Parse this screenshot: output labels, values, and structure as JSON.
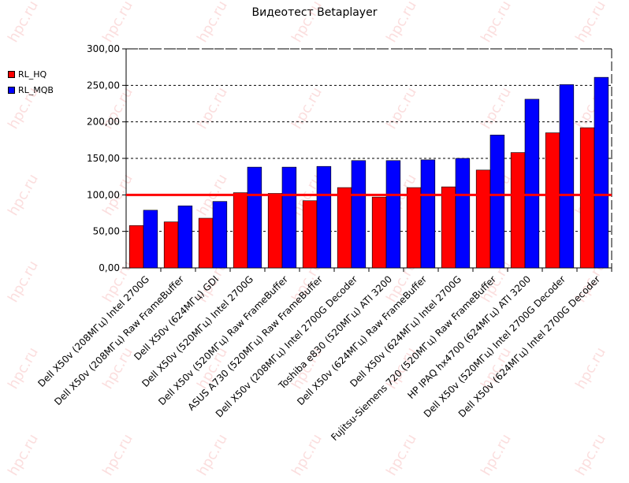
{
  "chart_data": {
    "type": "bar",
    "title": "Видеотест Betaplayer",
    "xlabel": "",
    "ylabel": "",
    "ylim": [
      0,
      300
    ],
    "yticks": [
      "0,00",
      "50,00",
      "100,00",
      "150,00",
      "200,00",
      "250,00",
      "300,00"
    ],
    "grid": true,
    "legend_position": "left",
    "reference_line": 100,
    "reference_color": "#ff0000",
    "watermark": "hpc.ru",
    "categories": [
      "Dell X50v (208МГц) Intel 2700G",
      "Dell X50v (208МГц) Raw FrameBuffer",
      "Dell X50v (624МГц) GDI",
      "Dell X50v (520МГц) Intel 2700G",
      "Dell X50v (520МГц) Raw FrameBuffer",
      "ASUS A730 (520МГц) Raw FrameBuffer",
      "Dell X50v (208МГц) Intel 2700G Decoder",
      "Toshiba e830 (520МГц) ATI 3200",
      "Dell X50v (624МГц) Raw FrameBuffer",
      "Dell X50v (624МГц) Intel 2700G",
      "Fujitsu-Siemens 720 (520МГц) Raw FrameBuffer",
      "HP IPAQ hx4700 (624МГц) ATI 3200",
      "Dell X50v (520МГц) Intel 2700G Decoder",
      "Dell X50v (624МГц) Intel 2700G Decoder"
    ],
    "series": [
      {
        "name": "RL_HQ",
        "color": "#ff0000",
        "values": [
          58,
          63,
          68,
          103,
          102,
          92,
          110,
          97,
          110,
          111,
          134,
          158,
          185,
          192
        ]
      },
      {
        "name": "RL_MQB",
        "color": "#0000ff",
        "values": [
          79,
          85,
          91,
          138,
          138,
          139,
          147,
          147,
          148,
          150,
          182,
          231,
          251,
          261
        ]
      }
    ]
  }
}
